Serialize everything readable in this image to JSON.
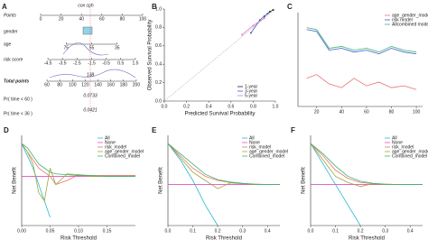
{
  "chart_data": [
    {
      "type": "nomogram",
      "panel_label": "A",
      "title": "cox cph",
      "rows": [
        {
          "name": "Points",
          "xlim": [
            0,
            100
          ],
          "ticks": [
            0,
            20,
            40,
            60,
            80,
            100
          ]
        },
        {
          "name": "gender"
        },
        {
          "name": "age",
          "xlim": [
            95,
            15
          ],
          "ticks": [
            75,
            55,
            35
          ]
        },
        {
          "name": "risk score",
          "xlim": [
            -5,
            2
          ],
          "ticks": [
            -4.5,
            -3.5,
            -2.5,
            -1.5,
            -0.5,
            0.5,
            1.5
          ]
        },
        {
          "name": "Total points",
          "xlim": [
            50,
            210
          ],
          "ticks": [
            60,
            80,
            100,
            120,
            140,
            160,
            180,
            200
          ]
        },
        {
          "name": "Pr( time < 60 )"
        },
        {
          "name": "Pr( time < 36 )"
        }
      ],
      "annotations": [
        "138",
        "0.0733",
        "0.0421"
      ]
    },
    {
      "type": "line",
      "panel_label": "B",
      "xlabel": "Predicted Survival Probability",
      "ylabel": "Observed Survival Probability",
      "xlim": [
        0,
        1
      ],
      "ylim": [
        0,
        1
      ],
      "xticks": [
        {
          "value": 0,
          "label": "0.0"
        },
        0.2,
        0.4,
        0.6,
        0.8,
        {
          "value": 1,
          "label": "1.0"
        }
      ],
      "yticks": [
        {
          "value": 0,
          "label": "0.0"
        },
        0.2,
        0.4,
        0.6,
        0.8,
        {
          "value": 1,
          "label": "1.0"
        }
      ],
      "legend": "lower right",
      "markers": true,
      "series": [
        {
          "name": "1-year",
          "color": "#222222",
          "x": [
            0.9,
            0.95,
            0.98
          ],
          "values": [
            0.92,
            0.97,
            0.99
          ]
        },
        {
          "name": "3-year",
          "color": "#3a5fcd",
          "x": [
            0.78,
            0.86,
            0.93
          ],
          "values": [
            0.74,
            0.88,
            0.95
          ]
        },
        {
          "name": "5-year",
          "color": "#e377c2",
          "x": [
            0.7,
            0.8,
            0.9
          ],
          "values": [
            0.72,
            0.82,
            0.9
          ]
        }
      ]
    },
    {
      "type": "line",
      "panel_label": "C",
      "xlim": [
        5,
        105
      ],
      "ylim": [
        0.45,
        0.95
      ],
      "xticks": [
        20,
        40,
        60,
        80,
        100
      ],
      "legend": "upper right",
      "x": [
        12,
        20,
        30,
        40,
        50,
        60,
        70,
        80,
        90,
        100
      ],
      "series": [
        {
          "name": "age_gender_model",
          "color": "#e8736c",
          "values": [
            0.6,
            0.62,
            0.57,
            0.55,
            0.6,
            0.56,
            0.58,
            0.55,
            0.56,
            0.54
          ]
        },
        {
          "name": "risk model",
          "color": "#3a5fcd",
          "values": [
            0.86,
            0.85,
            0.75,
            0.76,
            0.74,
            0.75,
            0.73,
            0.76,
            0.74,
            0.73
          ]
        },
        {
          "name": "Allcombined model",
          "color": "#3cb371",
          "values": [
            0.87,
            0.86,
            0.76,
            0.77,
            0.75,
            0.76,
            0.74,
            0.77,
            0.75,
            0.74
          ]
        }
      ]
    },
    {
      "type": "line",
      "panel_label": "D",
      "xlabel": "Risk Threshold",
      "ylabel": "Net Benefit",
      "xlim": [
        0,
        0.2
      ],
      "ylim": [
        -0.06,
        0.05
      ],
      "xticks": [
        {
          "value": 0,
          "label": "0.00"
        },
        0.05,
        {
          "value": 0.1,
          "label": "0.10"
        },
        0.15
      ],
      "legend": "upper right",
      "x": [
        0,
        0.01,
        0.02,
        0.03,
        0.04,
        0.05,
        0.06,
        0.08,
        0.1,
        0.12,
        0.15,
        0.2
      ],
      "series": [
        {
          "name": "All",
          "color": "#29b6d6",
          "values": [
            0.04,
            0.025,
            0.01,
            -0.01,
            -0.03,
            -0.05,
            null,
            null,
            null,
            null,
            null,
            null
          ]
        },
        {
          "name": "None",
          "color": "#e34fbf",
          "values": [
            0,
            0,
            0,
            0,
            0,
            0,
            0,
            0,
            0,
            0,
            0,
            0
          ]
        },
        {
          "name": "risk_model",
          "color": "#e8736c",
          "values": [
            0.04,
            0.03,
            0.02,
            0.01,
            0.005,
            0,
            -0.01,
            -0.005,
            0.002,
            0.001,
            0.001,
            0.001
          ]
        },
        {
          "name": "age_gender_model",
          "color": "#a3a33a",
          "values": [
            0.04,
            0.03,
            0.015,
            -0.02,
            -0.03,
            0.01,
            -0.01,
            0.003,
            0.002,
            0,
            0,
            0
          ]
        },
        {
          "name": "Combined_model",
          "color": "#3cb371",
          "values": [
            0.04,
            0.035,
            0.025,
            0.015,
            0.01,
            0.005,
            0.003,
            0.002,
            0.001,
            0.001,
            0,
            0
          ]
        }
      ]
    },
    {
      "type": "line",
      "panel_label": "E",
      "xlabel": "Risk Threshold",
      "ylabel": "Net Benefit",
      "xlim": [
        0,
        0.45
      ],
      "ylim": [
        -0.1,
        0.12
      ],
      "xticks": [
        {
          "value": 0,
          "label": "0.0"
        },
        0.1,
        0.2,
        0.3,
        0.4
      ],
      "legend": "upper right",
      "x": [
        0,
        0.05,
        0.1,
        0.15,
        0.2,
        0.25,
        0.3,
        0.35,
        0.4,
        0.45
      ],
      "series": [
        {
          "name": "All",
          "color": "#29b6d6",
          "values": [
            0.1,
            0.06,
            0.01,
            -0.05,
            -0.1,
            null,
            null,
            null,
            null,
            null
          ]
        },
        {
          "name": "None",
          "color": "#e34fbf",
          "values": [
            0,
            0,
            0,
            0,
            0,
            0,
            0,
            0,
            0,
            0
          ]
        },
        {
          "name": "risk_model",
          "color": "#e8736c",
          "values": [
            0.1,
            0.07,
            0.04,
            0.02,
            0.01,
            0.005,
            0.002,
            0.001,
            0,
            0
          ]
        },
        {
          "name": "age_gender_model",
          "color": "#a3a33a",
          "values": [
            0.1,
            0.065,
            0.03,
            0.01,
            -0.01,
            0.004,
            0.002,
            0,
            0,
            0
          ]
        },
        {
          "name": "Combined_model",
          "color": "#3cb371",
          "values": [
            0.1,
            0.075,
            0.05,
            0.025,
            0.012,
            0.006,
            0.003,
            0.001,
            0,
            0
          ]
        }
      ]
    },
    {
      "type": "line",
      "panel_label": "F",
      "xlabel": "Risk Threshold",
      "ylabel": "Net Benefit",
      "xlim": [
        0,
        0.45
      ],
      "ylim": [
        -0.1,
        0.12
      ],
      "xticks": [
        {
          "value": 0,
          "label": "0.0"
        },
        0.1,
        0.2,
        0.3,
        0.4
      ],
      "legend": "upper right",
      "x": [
        0,
        0.05,
        0.1,
        0.15,
        0.2,
        0.25,
        0.3,
        0.35,
        0.4,
        0.45
      ],
      "series": [
        {
          "name": "All",
          "color": "#29b6d6",
          "values": [
            0.1,
            0.05,
            0,
            -0.05,
            -0.1,
            null,
            null,
            null,
            null,
            null
          ]
        },
        {
          "name": "None",
          "color": "#e34fbf",
          "values": [
            0,
            0,
            0,
            0,
            0,
            0,
            0,
            0,
            0,
            0
          ]
        },
        {
          "name": "risk_model",
          "color": "#e8736c",
          "values": [
            0.1,
            0.07,
            0.035,
            0.015,
            0.005,
            0.002,
            0.001,
            0,
            0,
            0
          ]
        },
        {
          "name": "age_gender_model",
          "color": "#a3a33a",
          "values": [
            0.1,
            0.06,
            0.02,
            0.005,
            -0.005,
            0.002,
            0,
            0,
            0,
            0
          ]
        },
        {
          "name": "Combined_model",
          "color": "#3cb371",
          "values": [
            0.1,
            0.075,
            0.045,
            0.02,
            0.008,
            0.003,
            0.001,
            0,
            0,
            0
          ]
        }
      ]
    }
  ]
}
